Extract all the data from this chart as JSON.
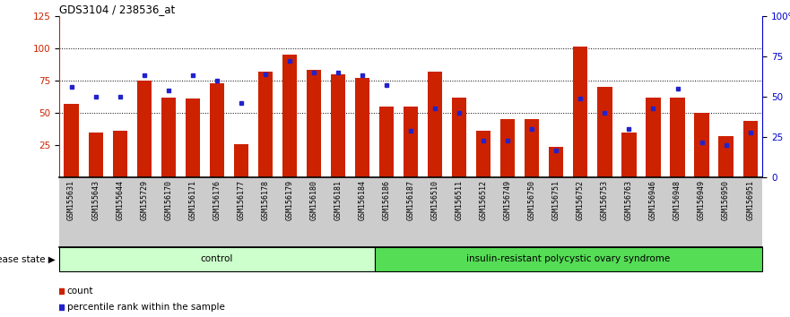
{
  "title": "GDS3104 / 238536_at",
  "samples": [
    "GSM155631",
    "GSM155643",
    "GSM155644",
    "GSM155729",
    "GSM156170",
    "GSM156171",
    "GSM156176",
    "GSM156177",
    "GSM156178",
    "GSM156179",
    "GSM156180",
    "GSM156181",
    "GSM156184",
    "GSM156186",
    "GSM156187",
    "GSM156510",
    "GSM156511",
    "GSM156512",
    "GSM156749",
    "GSM156750",
    "GSM156751",
    "GSM156752",
    "GSM156753",
    "GSM156763",
    "GSM156946",
    "GSM156948",
    "GSM156949",
    "GSM156950",
    "GSM156951"
  ],
  "counts": [
    57,
    35,
    36,
    75,
    62,
    61,
    73,
    26,
    82,
    95,
    83,
    80,
    77,
    55,
    55,
    82,
    62,
    36,
    45,
    45,
    24,
    101,
    70,
    35,
    62,
    62,
    50,
    32,
    44
  ],
  "percentile_ranks": [
    56,
    50,
    50,
    63,
    54,
    63,
    60,
    46,
    64,
    72,
    65,
    65,
    63,
    57,
    29,
    43,
    40,
    23,
    23,
    30,
    17,
    49,
    40,
    30,
    43,
    55,
    22,
    20,
    28
  ],
  "control_count": 13,
  "disease_count": 16,
  "control_label": "control",
  "disease_label": "insulin-resistant polycystic ovary syndrome",
  "ylim_left": [
    0,
    125
  ],
  "ylim_right": [
    0,
    100
  ],
  "yticks_left": [
    25,
    50,
    75,
    100,
    125
  ],
  "yticks_right": [
    0,
    25,
    50,
    75,
    100
  ],
  "bar_color": "#CC2200",
  "dot_color": "#2222CC",
  "control_bg": "#CCFFCC",
  "disease_bg": "#55DD55",
  "label_bg": "#CCCCCC",
  "legend_count_label": "count",
  "legend_percentile_label": "percentile rank within the sample"
}
